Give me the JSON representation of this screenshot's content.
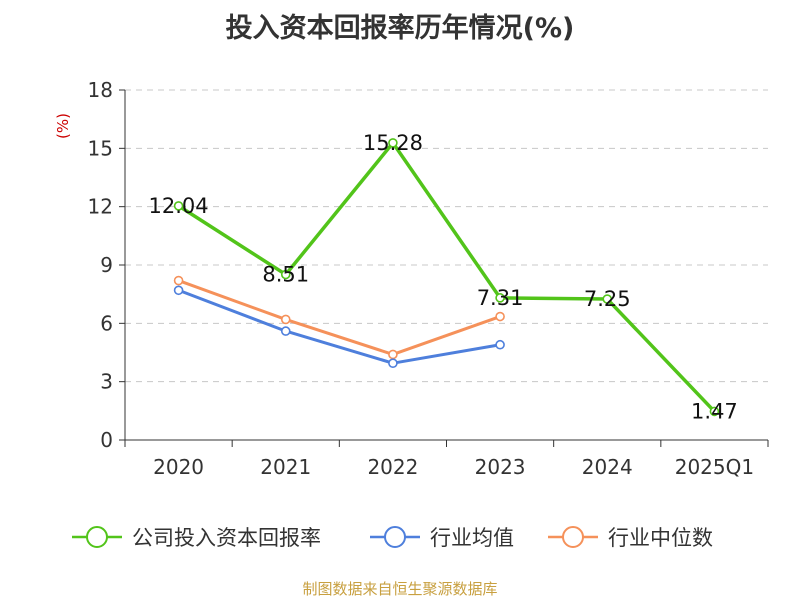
{
  "chart_data": {
    "type": "line",
    "title": "投入资本回报率历年情况(%)",
    "ylabel": "(%)",
    "categories": [
      "2020",
      "2021",
      "2022",
      "2023",
      "2024",
      "2025Q1"
    ],
    "ylim": [
      0,
      18
    ],
    "yticks": [
      "0",
      "3",
      "6",
      "9",
      "12",
      "15",
      "18"
    ],
    "grid": true,
    "legend_position": "bottom",
    "series": [
      {
        "name": "公司投入资本回报率",
        "color": "#52c41a",
        "values": [
          12.04,
          8.51,
          15.28,
          7.31,
          7.25,
          1.47
        ],
        "labels": [
          "12.04",
          "8.51",
          "15.28",
          "7.31",
          "7.25",
          "1.47"
        ]
      },
      {
        "name": "行业均值",
        "color": "#4e7fdc",
        "values": [
          7.7,
          5.6,
          3.95,
          4.9,
          null,
          null
        ]
      },
      {
        "name": "行业中位数",
        "color": "#f5915a",
        "values": [
          8.2,
          6.2,
          4.4,
          6.35,
          null,
          null
        ]
      }
    ]
  },
  "footer": "制图数据来自恒生聚源数据库"
}
